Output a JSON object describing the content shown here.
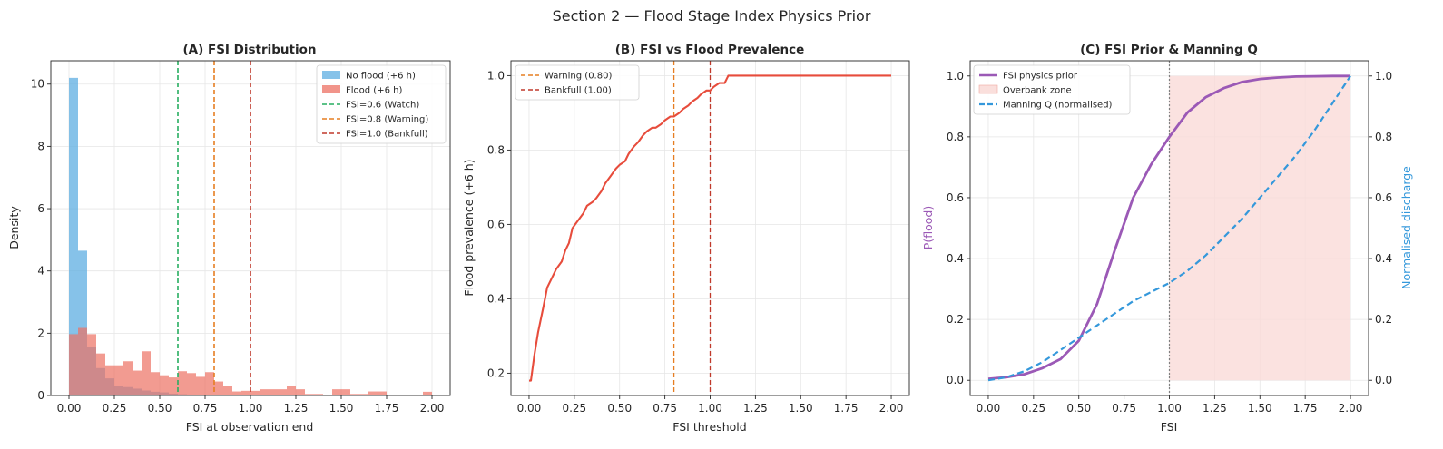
{
  "figure": {
    "suptitle": "Section 2 — Flood Stage Index Physics Prior"
  },
  "chart_data": [
    {
      "type": "bar",
      "subtype": "histogram",
      "title": "(A) FSI Distribution",
      "xlabel": "FSI at observation end",
      "ylabel": "Density",
      "xlim": [
        -0.1,
        2.1
      ],
      "ylim": [
        0,
        10.75
      ],
      "xticks": [
        "0.00",
        "0.25",
        "0.50",
        "0.75",
        "1.00",
        "1.25",
        "1.50",
        "1.75",
        "2.00"
      ],
      "yticks": [
        "0",
        "2",
        "4",
        "6",
        "8",
        "10"
      ],
      "grid": true,
      "legend_position": "top-right",
      "bin_width": 0.05,
      "bin_start": 0.0,
      "series": [
        {
          "name": "No flood (+6 h)",
          "color": "#5dade2",
          "values": [
            10.2,
            4.65,
            1.55,
            0.88,
            0.55,
            0.32,
            0.27,
            0.22,
            0.16,
            0.12,
            0.1,
            0.06,
            0.04,
            0.03,
            0.02,
            0.02,
            0.01,
            0.01,
            0.01,
            0,
            0,
            0,
            0,
            0,
            0,
            0,
            0,
            0,
            0,
            0,
            0,
            0,
            0,
            0,
            0,
            0,
            0,
            0,
            0,
            0
          ]
        },
        {
          "name": "Flood (+6 h)",
          "color": "#ec7063",
          "values": [
            1.97,
            2.17,
            1.97,
            1.35,
            0.97,
            0.97,
            1.1,
            0.8,
            1.42,
            0.75,
            0.65,
            0.58,
            0.78,
            0.72,
            0.6,
            0.75,
            0.45,
            0.3,
            0.13,
            0.15,
            0.15,
            0.2,
            0.2,
            0.2,
            0.3,
            0.2,
            0.05,
            0.05,
            0,
            0.2,
            0.2,
            0.05,
            0.05,
            0.13,
            0.13,
            0,
            0,
            0,
            0,
            0.12
          ]
        }
      ],
      "vlines": [
        {
          "x": 0.6,
          "name": "FSI=0.6 (Watch)",
          "color": "#27ae60"
        },
        {
          "x": 0.8,
          "name": "FSI=0.8 (Warning)",
          "color": "#e67e22"
        },
        {
          "x": 1.0,
          "name": "FSI=1.0 (Bankfull)",
          "color": "#c0392b"
        }
      ]
    },
    {
      "type": "line",
      "title": "(B) FSI vs Flood Prevalence",
      "xlabel": "FSI threshold",
      "ylabel": "Flood prevalence (+6 h)",
      "xlim": [
        -0.1,
        2.1
      ],
      "ylim": [
        0.14,
        1.04
      ],
      "xticks": [
        "0.00",
        "0.25",
        "0.50",
        "0.75",
        "1.00",
        "1.25",
        "1.50",
        "1.75",
        "2.00"
      ],
      "yticks": [
        "0.2",
        "0.4",
        "0.6",
        "0.8",
        "1.0"
      ],
      "grid": true,
      "legend_position": "top-left",
      "series": [
        {
          "name": "",
          "color": "#e74c3c",
          "x": [
            0.0,
            0.01,
            0.03,
            0.05,
            0.08,
            0.1,
            0.13,
            0.15,
            0.18,
            0.2,
            0.22,
            0.24,
            0.27,
            0.3,
            0.32,
            0.35,
            0.37,
            0.4,
            0.42,
            0.45,
            0.48,
            0.5,
            0.53,
            0.55,
            0.58,
            0.6,
            0.63,
            0.65,
            0.68,
            0.7,
            0.73,
            0.75,
            0.78,
            0.8,
            0.83,
            0.85,
            0.88,
            0.9,
            0.93,
            0.95,
            0.98,
            1.0,
            1.02,
            1.05,
            1.08,
            1.1,
            1.5,
            2.0
          ],
          "y": [
            0.18,
            0.18,
            0.25,
            0.31,
            0.38,
            0.43,
            0.46,
            0.48,
            0.5,
            0.53,
            0.55,
            0.59,
            0.61,
            0.63,
            0.65,
            0.66,
            0.67,
            0.69,
            0.71,
            0.73,
            0.75,
            0.76,
            0.77,
            0.79,
            0.81,
            0.82,
            0.84,
            0.85,
            0.86,
            0.86,
            0.87,
            0.88,
            0.89,
            0.89,
            0.9,
            0.91,
            0.92,
            0.93,
            0.94,
            0.95,
            0.96,
            0.96,
            0.97,
            0.98,
            0.98,
            1.0,
            1.0,
            1.0
          ]
        }
      ],
      "vlines": [
        {
          "x": 0.8,
          "name": "Warning (0.80)",
          "color": "#e67e22"
        },
        {
          "x": 1.0,
          "name": "Bankfull (1.00)",
          "color": "#c0392b"
        }
      ]
    },
    {
      "type": "line",
      "title": "(C) FSI Prior & Manning Q",
      "xlabel": "FSI",
      "ylabel": "P(flood)",
      "ylabel_color": "#9b59b6",
      "y2label": "Normalised discharge",
      "y2label_color": "#3498db",
      "xlim": [
        -0.1,
        2.1
      ],
      "ylim": [
        -0.05,
        1.05
      ],
      "xticks": [
        "0.00",
        "0.25",
        "0.50",
        "0.75",
        "1.00",
        "1.25",
        "1.50",
        "1.75",
        "2.00"
      ],
      "yticks": [
        "0.0",
        "0.2",
        "0.4",
        "0.6",
        "0.8",
        "1.0"
      ],
      "y2ticks": [
        "0.0",
        "0.2",
        "0.4",
        "0.6",
        "0.8",
        "1.0"
      ],
      "grid": true,
      "legend_position": "top-left",
      "series": [
        {
          "name": "FSI physics prior",
          "color": "#9b59b6",
          "x": [
            0.0,
            0.1,
            0.2,
            0.3,
            0.4,
            0.5,
            0.6,
            0.7,
            0.8,
            0.9,
            1.0,
            1.1,
            1.2,
            1.3,
            1.4,
            1.5,
            1.6,
            1.7,
            1.8,
            1.9,
            2.0
          ],
          "y": [
            0.005,
            0.01,
            0.02,
            0.04,
            0.07,
            0.13,
            0.25,
            0.43,
            0.6,
            0.71,
            0.8,
            0.88,
            0.93,
            0.96,
            0.98,
            0.99,
            0.995,
            0.998,
            0.999,
            1.0,
            1.0
          ]
        },
        {
          "name": "Manning Q (normalised)",
          "color": "#3498db",
          "axis": "y2",
          "x": [
            0.0,
            0.1,
            0.2,
            0.3,
            0.4,
            0.5,
            0.6,
            0.7,
            0.8,
            0.9,
            1.0,
            1.1,
            1.2,
            1.3,
            1.4,
            1.5,
            1.6,
            1.7,
            1.8,
            1.9,
            2.0
          ],
          "y": [
            0.0,
            0.01,
            0.03,
            0.06,
            0.1,
            0.14,
            0.18,
            0.22,
            0.26,
            0.29,
            0.32,
            0.36,
            0.41,
            0.47,
            0.53,
            0.6,
            0.67,
            0.74,
            0.82,
            0.91,
            1.0
          ]
        }
      ],
      "shaded_region": {
        "name": "Overbank zone",
        "x_from": 1.0,
        "x_to": 2.0,
        "color": "#fadbd8"
      },
      "vlines": [
        {
          "x": 1.0,
          "name": "",
          "color": "#808080"
        }
      ]
    }
  ]
}
